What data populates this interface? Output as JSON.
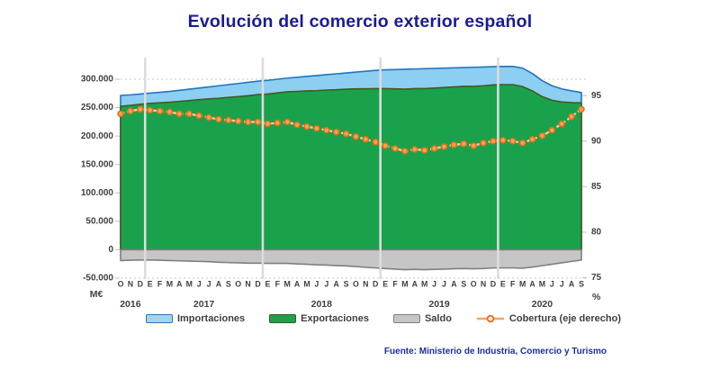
{
  "title": "Evolución del comercio exterior español",
  "source": "Fuente: Ministerio de Industria, Comercio y Turismo",
  "colors": {
    "title_text": "#1a1a99",
    "source_text": "#1b2f9e",
    "axis_text": "#404040",
    "importaciones_fill": "#8ccff3",
    "importaciones_border": "#2175bc",
    "exportaciones_fill": "#19a24b",
    "exportaciones_border": "#44591f",
    "saldo_fill": "#c6c6c6",
    "saldo_border": "#7f7f7f",
    "cobertura_line": "#facda4",
    "cobertura_marker_fill": "#f6a15c",
    "cobertura_marker_stroke": "#e36f15",
    "year_divider": "#dcdcdc",
    "gridline": "#c8c8c8"
  },
  "chart_data": {
    "type": "area",
    "title": "Evolución del comercio exterior español",
    "xlabel": "",
    "legend_position": "bottom",
    "grid": "dotted horizontal lines at 300000 and -50000; vertical light dividers between years",
    "x_months": [
      "O",
      "N",
      "D",
      "E",
      "F",
      "M",
      "A",
      "M",
      "J",
      "J",
      "A",
      "S",
      "O",
      "N",
      "D",
      "E",
      "F",
      "M",
      "A",
      "M",
      "J",
      "J",
      "A",
      "S",
      "O",
      "N",
      "D",
      "E",
      "F",
      "M",
      "A",
      "M",
      "J",
      "J",
      "A",
      "S",
      "O",
      "N",
      "D",
      "E",
      "F",
      "M",
      "A",
      "M",
      "J",
      "J",
      "A",
      "S"
    ],
    "years": [
      {
        "label": "2016",
        "start": 0,
        "end": 2
      },
      {
        "label": "2017",
        "start": 3,
        "end": 14
      },
      {
        "label": "2018",
        "start": 15,
        "end": 26
      },
      {
        "label": "2019",
        "start": 27,
        "end": 38
      },
      {
        "label": "2020",
        "start": 39,
        "end": 47
      }
    ],
    "left_axis": {
      "label": "M€",
      "ticks": [
        "300.000",
        "250.000",
        "200.000",
        "150.000",
        "100.000",
        "50.000",
        "0",
        "-50.000"
      ],
      "tick_values": [
        300000,
        250000,
        200000,
        150000,
        100000,
        50000,
        0,
        -50000
      ],
      "min": -50000,
      "max": 300000,
      "gridline_values": [
        300000,
        -50000
      ]
    },
    "right_axis": {
      "label": "%",
      "ticks": [
        "95",
        "90",
        "85",
        "80",
        "75"
      ],
      "tick_values": [
        95,
        90,
        85,
        80,
        75
      ],
      "min": 75,
      "max": 95
    },
    "series": [
      {
        "name": "Importaciones",
        "type": "area",
        "axis": "left",
        "values": [
          271500,
          272500,
          274000,
          275500,
          277000,
          278500,
          280500,
          282500,
          284500,
          286500,
          288500,
          290500,
          292500,
          294500,
          296500,
          298000,
          300000,
          302000,
          303500,
          305000,
          306500,
          308000,
          309500,
          311000,
          312500,
          314000,
          315500,
          316500,
          317000,
          317500,
          318000,
          318500,
          319000,
          319500,
          320000,
          320500,
          321000,
          321500,
          322000,
          322500,
          322500,
          319500,
          310000,
          297500,
          288500,
          283000,
          279500,
          276500
        ]
      },
      {
        "name": "Exportaciones",
        "type": "area",
        "axis": "left",
        "values": [
          252500,
          254000,
          256000,
          257500,
          258500,
          259500,
          261000,
          262500,
          264000,
          265500,
          266500,
          268000,
          269500,
          271000,
          273000,
          274000,
          276000,
          278000,
          278500,
          279500,
          280000,
          281000,
          281500,
          282500,
          283000,
          283000,
          283500,
          283500,
          283000,
          282500,
          283500,
          283500,
          284500,
          285500,
          286500,
          287500,
          287500,
          288500,
          290000,
          290500,
          290500,
          287000,
          279500,
          269500,
          263000,
          260000,
          259000,
          258500
        ]
      },
      {
        "name": "Saldo",
        "type": "area",
        "axis": "left",
        "values": [
          -19000,
          -18500,
          -18000,
          -18000,
          -18500,
          -19000,
          -19500,
          -20000,
          -20500,
          -21000,
          -22000,
          -22500,
          -23000,
          -23500,
          -23500,
          -24000,
          -24000,
          -24000,
          -25000,
          -25500,
          -26500,
          -27000,
          -28000,
          -28500,
          -29500,
          -31000,
          -32000,
          -33000,
          -34000,
          -35000,
          -34500,
          -35000,
          -34500,
          -34000,
          -33500,
          -33000,
          -33500,
          -33000,
          -32000,
          -32000,
          -32000,
          -32500,
          -30500,
          -28000,
          -25500,
          -23000,
          -20500,
          -18000
        ]
      },
      {
        "name": "Cobertura (eje derecho)",
        "type": "line",
        "axis": "right",
        "values": [
          93.0,
          93.3,
          93.5,
          93.4,
          93.3,
          93.2,
          93.0,
          93.0,
          92.8,
          92.6,
          92.4,
          92.3,
          92.2,
          92.1,
          92.1,
          91.9,
          92.0,
          92.1,
          91.8,
          91.6,
          91.4,
          91.2,
          91.0,
          90.8,
          90.5,
          90.2,
          89.9,
          89.5,
          89.2,
          88.9,
          89.1,
          89.0,
          89.2,
          89.4,
          89.6,
          89.7,
          89.5,
          89.8,
          90.0,
          90.1,
          90.0,
          89.8,
          90.2,
          90.6,
          91.2,
          91.9,
          92.7,
          93.5
        ]
      }
    ]
  }
}
